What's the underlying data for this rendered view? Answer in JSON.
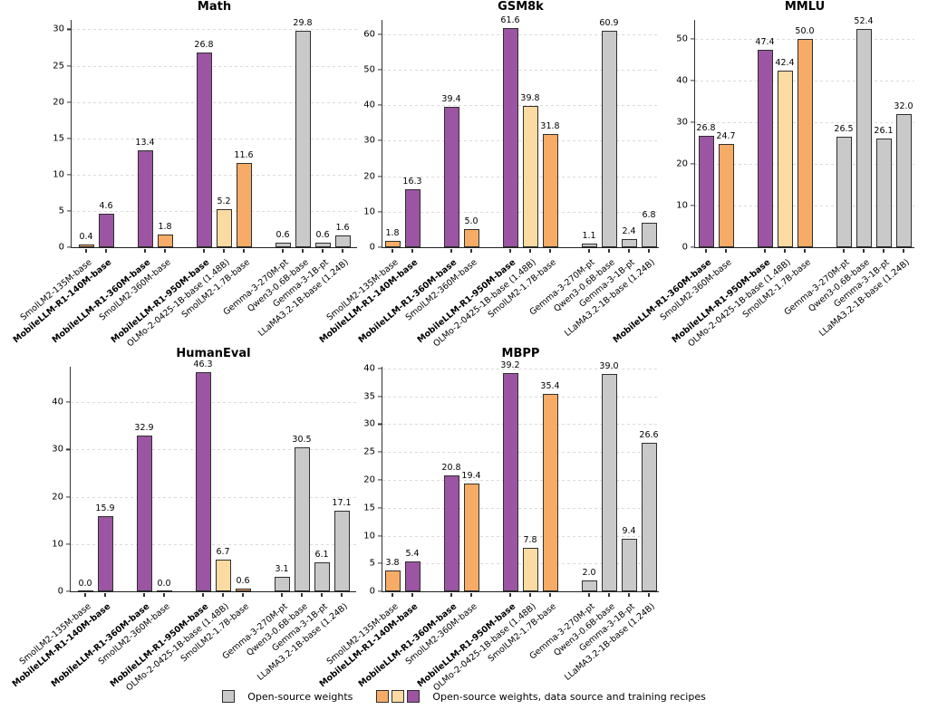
{
  "colors": {
    "purple": "#9B55A2",
    "orange": "#F6AC66",
    "peach": "#FBDBA2",
    "gray": "#C9C9C9",
    "edge": "#2F2F2F"
  },
  "models": [
    {
      "label": "SmolLM2-135M-base",
      "color": "orange",
      "bold": false
    },
    {
      "label": "MobileLLM-R1-140M-base",
      "color": "purple",
      "bold": true
    },
    {
      "label": "MobileLLM-R1-360M-base",
      "color": "purple",
      "bold": true
    },
    {
      "label": "SmolLM2-360M-base",
      "color": "orange",
      "bold": false
    },
    {
      "label": "MobileLLM-R1-950M-base",
      "color": "purple",
      "bold": true
    },
    {
      "label": "OLMo-2-0425-1B-base (1.48B)",
      "color": "peach",
      "bold": false
    },
    {
      "label": "SmolLM2-1.7B-base",
      "color": "orange",
      "bold": false
    },
    {
      "label": "Gemma-3-270M-pt",
      "color": "gray",
      "bold": false
    },
    {
      "label": "Qwen3-0.6B-base",
      "color": "gray",
      "bold": false
    },
    {
      "label": "Gemma-3-1B-pt",
      "color": "gray",
      "bold": false
    },
    {
      "label": "LLaMA3.2-1B-base (1.24B)",
      "color": "gray",
      "bold": false
    }
  ],
  "chart_data": [
    {
      "type": "bar",
      "title": "Math",
      "categories": [
        "SmolLM2-135M-base",
        "MobileLLM-R1-140M-base",
        "MobileLLM-R1-360M-base",
        "SmolLM2-360M-base",
        "MobileLLM-R1-950M-base",
        "OLMo-2-0425-1B-base (1.48B)",
        "SmolLM2-1.7B-base",
        "Gemma-3-270M-pt",
        "Qwen3-0.6B-base",
        "Gemma-3-1B-pt",
        "LLaMA3.2-1B-base (1.24B)"
      ],
      "values": [
        0.4,
        4.6,
        13.4,
        1.8,
        26.8,
        5.2,
        11.6,
        0.6,
        29.8,
        0.6,
        1.6
      ],
      "groups": [
        2,
        2,
        3,
        4
      ],
      "yticks": [
        0,
        5,
        10,
        15,
        20,
        25,
        30
      ],
      "ylim": [
        0,
        31.3
      ],
      "grid": "dashed-horizontal",
      "xlabel": "",
      "ylabel": ""
    },
    {
      "type": "bar",
      "title": "GSM8k",
      "categories": [
        "SmolLM2-135M-base",
        "MobileLLM-R1-140M-base",
        "MobileLLM-R1-360M-base",
        "SmolLM2-360M-base",
        "MobileLLM-R1-950M-base",
        "OLMo-2-0425-1B-base (1.48B)",
        "SmolLM2-1.7B-base",
        "Gemma-3-270M-pt",
        "Qwen3-0.6B-base",
        "Gemma-3-1B-pt",
        "LLaMA3.2-1B-base (1.24B)"
      ],
      "values": [
        1.8,
        16.3,
        39.4,
        5.0,
        61.6,
        39.8,
        31.8,
        1.1,
        60.9,
        2.4,
        6.8
      ],
      "groups": [
        2,
        2,
        3,
        4
      ],
      "yticks": [
        0,
        10,
        20,
        30,
        40,
        50,
        60
      ],
      "ylim": [
        0,
        64
      ],
      "grid": "dashed-horizontal",
      "xlabel": "",
      "ylabel": ""
    },
    {
      "type": "bar",
      "title": "MMLU",
      "categories": [
        "MobileLLM-R1-360M-base",
        "SmolLM2-360M-base",
        "MobileLLM-R1-950M-base",
        "OLMo-2-0425-1B-base (1.48B)",
        "SmolLM2-1.7B-base",
        "Gemma-3-270M-pt",
        "Qwen3-0.6B-base",
        "Gemma-3-1B-pt",
        "LLaMA3.2-1B-base (1.24B)"
      ],
      "values": [
        26.8,
        24.7,
        47.4,
        42.4,
        50.0,
        26.5,
        52.4,
        26.1,
        32.0
      ],
      "groups": [
        2,
        3,
        4
      ],
      "yticks": [
        0,
        10,
        20,
        30,
        40,
        50
      ],
      "ylim": [
        0,
        54.6
      ],
      "grid": "dashed-horizontal",
      "xlabel": "",
      "ylabel": ""
    },
    {
      "type": "bar",
      "title": "HumanEval",
      "categories": [
        "SmolLM2-135M-base",
        "MobileLLM-R1-140M-base",
        "MobileLLM-R1-360M-base",
        "SmolLM2-360M-base",
        "MobileLLM-R1-950M-base",
        "OLMo-2-0425-1B-base (1.48B)",
        "SmolLM2-1.7B-base",
        "Gemma-3-270M-pt",
        "Qwen3-0.6B-base",
        "Gemma-3-1B-pt",
        "LLaMA3.2-1B-base (1.24B)"
      ],
      "values": [
        0.0,
        15.9,
        32.9,
        0.0,
        46.3,
        6.7,
        0.6,
        3.1,
        30.5,
        6.1,
        17.1
      ],
      "groups": [
        2,
        2,
        3,
        4
      ],
      "yticks": [
        0,
        10,
        20,
        30,
        40
      ],
      "ylim": [
        0,
        47.5
      ],
      "grid": "dashed-horizontal",
      "xlabel": "",
      "ylabel": ""
    },
    {
      "type": "bar",
      "title": "MBPP",
      "categories": [
        "SmolLM2-135M-base",
        "MobileLLM-R1-140M-base",
        "MobileLLM-R1-360M-base",
        "SmolLM2-360M-base",
        "MobileLLM-R1-950M-base",
        "OLMo-2-0425-1B-base (1.48B)",
        "SmolLM2-1.7B-base",
        "Gemma-3-270M-pt",
        "Qwen3-0.6B-base",
        "Gemma-3-1B-pt",
        "LLaMA3.2-1B-base (1.24B)"
      ],
      "values": [
        3.8,
        5.4,
        20.8,
        19.4,
        39.2,
        7.8,
        35.4,
        2.0,
        39.0,
        9.4,
        26.6
      ],
      "groups": [
        2,
        2,
        3,
        4
      ],
      "yticks": [
        0,
        5,
        10,
        15,
        20,
        25,
        30,
        35,
        40
      ],
      "ylim": [
        0,
        40.3
      ],
      "grid": "dashed-horizontal",
      "xlabel": "",
      "ylabel": ""
    }
  ],
  "legend": {
    "position": "bottom-center",
    "items": [
      {
        "label": "Open-source weights",
        "swatches": [
          "gray"
        ]
      },
      {
        "label": "Open-source weights, data source and training recipes",
        "swatches": [
          "orange",
          "peach",
          "purple"
        ]
      }
    ]
  }
}
